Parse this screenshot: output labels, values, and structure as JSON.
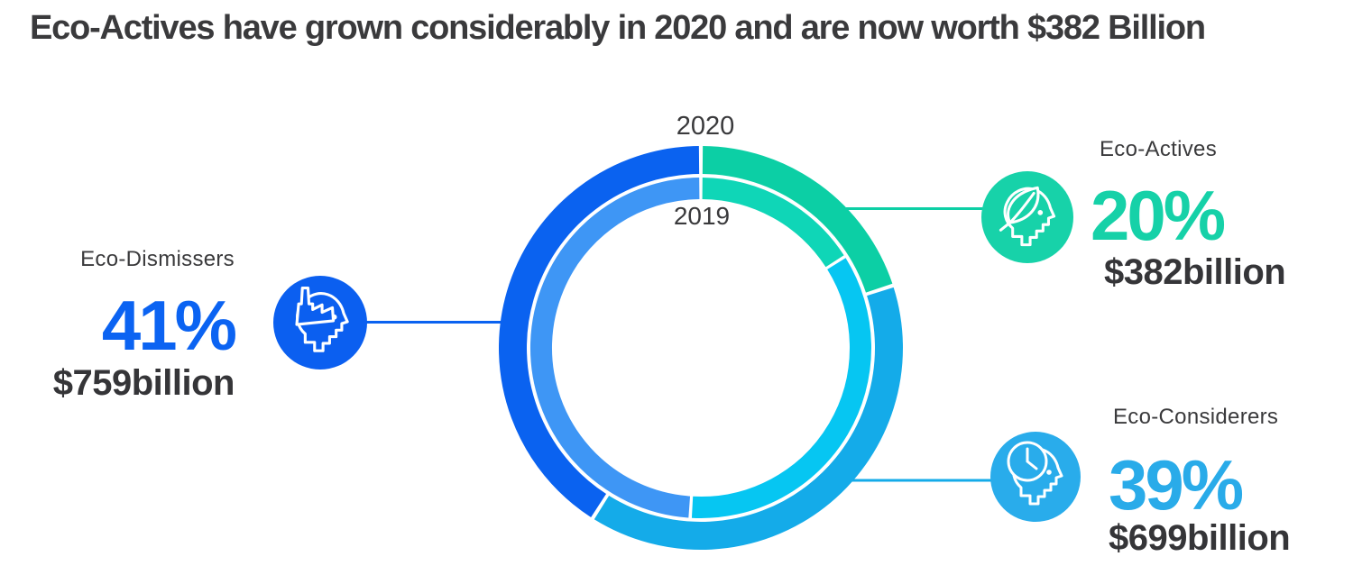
{
  "title": "Eco-Actives have grown considerably in 2020 and are now worth $382 Billion",
  "chart_data": {
    "type": "donut",
    "description": "Two concentric rings showing consumer eco-segment shares, outer ring 2020 and inner ring 2019, starting at 12 o'clock going clockwise",
    "unit": "%",
    "start_angle_deg": 0,
    "clockwise": true,
    "rings": [
      {
        "year": "2020",
        "position": "outer",
        "segments": [
          {
            "name": "Eco-Actives",
            "value": 20,
            "color": "#0ccfa5"
          },
          {
            "name": "Eco-Considerers",
            "value": 39,
            "color": "#14abe9"
          },
          {
            "name": "Eco-Dismissers",
            "value": 41,
            "color": "#0a62f0"
          }
        ]
      },
      {
        "year": "2019",
        "position": "inner",
        "segments": [
          {
            "name": "Eco-Actives",
            "value": 16,
            "color": "#0fd6b7"
          },
          {
            "name": "Eco-Considerers",
            "value": 35,
            "color": "#06c6f2"
          },
          {
            "name": "Eco-Dismissers",
            "value": 49,
            "color": "#3e96f5"
          }
        ]
      }
    ]
  },
  "callouts": [
    {
      "id": "dismissers",
      "label": "Eco-Dismissers",
      "pct": "41%",
      "value": "$759billion",
      "accent": "#0b63f2",
      "icon_color": "#0b5ff0",
      "line_color": "#0a62f0",
      "icon": "factory-head-icon"
    },
    {
      "id": "actives",
      "label": "Eco-Actives",
      "pct": "20%",
      "value": "$382billion",
      "accent": "#16d1a8",
      "icon_color": "#17d2a9",
      "line_color": "#0ccfa5",
      "icon": "leaf-head-icon"
    },
    {
      "id": "considerers",
      "label": "Eco-Considerers",
      "pct": "39%",
      "value": "$699billion",
      "accent": "#29abe9",
      "icon_color": "#29aceb",
      "line_color": "#14abe9",
      "icon": "clock-head-icon"
    }
  ],
  "colors": {
    "text_dark": "#3a3a3c",
    "background": "#ffffff"
  }
}
